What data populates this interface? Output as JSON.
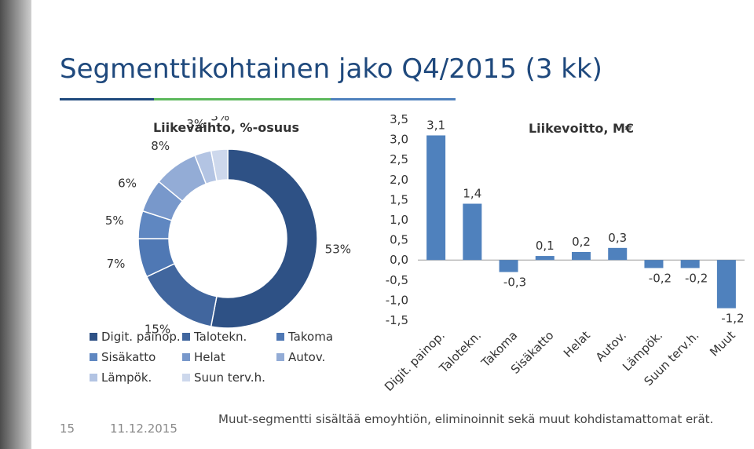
{
  "slide": {
    "title": "Segmenttikohtainen jako Q4/2015 (3 kk)",
    "page_number": "15",
    "date": "11.12.2015",
    "footnote": "Muut-segmentti sisältää emoyhtiön, eliminoinnit sekä muut kohdistamattomat erät.",
    "accent_colors": [
      "#1f497d",
      "#5cb85c",
      "#4f81bd"
    ]
  },
  "chart_data": [
    {
      "type": "pie",
      "title": "Liikevaihto, %-osuus",
      "categories": [
        "Digit. painop.",
        "Talotekn.",
        "Takoma",
        "Sisäkatto",
        "Helat",
        "Autov.",
        "Lämpök.",
        "Suun terv.h."
      ],
      "values": [
        53,
        15,
        7,
        5,
        6,
        8,
        3,
        3
      ],
      "labels": [
        "53%",
        "15%",
        "7%",
        "5%",
        "6%",
        "8%",
        "3%",
        "3%"
      ],
      "colors": [
        "#2e5185",
        "#41669e",
        "#4f78b4",
        "#5f87c1",
        "#7898cb",
        "#93acd6",
        "#b3c4e3",
        "#cdd8ec"
      ],
      "legend": "bottom"
    },
    {
      "type": "bar",
      "title": "Liikevoitto, M€",
      "categories": [
        "Digit. painop.",
        "Talotekn.",
        "Takoma",
        "Sisäkatto",
        "Helat",
        "Autov.",
        "Lämpök.",
        "Suun terv.h.",
        "Muut"
      ],
      "values": [
        3.1,
        1.4,
        -0.3,
        0.1,
        0.2,
        0.3,
        -0.2,
        -0.2,
        -1.2
      ],
      "labels": [
        "3,1",
        "1,4",
        "-0,3",
        "0,1",
        "0,2",
        "0,3",
        "-0,2",
        "-0,2",
        "-1,2"
      ],
      "yticks": [
        "3,5",
        "3,0",
        "2,5",
        "2,0",
        "1,5",
        "1,0",
        "0,5",
        "0,0",
        "-0,5",
        "-1,0",
        "-1,5"
      ],
      "ylim": [
        -1.5,
        3.5
      ],
      "color": "#4f81bd"
    }
  ]
}
